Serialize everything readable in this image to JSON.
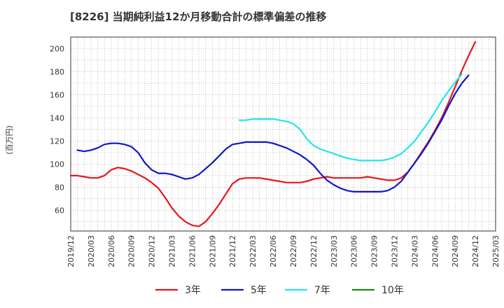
{
  "chart_data": {
    "type": "line",
    "title": "[8226]  当期純利益12か月移動合計の標準偏差の推移",
    "ylabel": "(百万円)",
    "xlabel": "",
    "ylim": [
      42,
      210
    ],
    "y_ticks": [
      60,
      80,
      100,
      120,
      140,
      160,
      180,
      200
    ],
    "x_ticks": [
      "2019/12",
      "2020/03",
      "2020/06",
      "2020/09",
      "2020/12",
      "2021/03",
      "2021/06",
      "2021/09",
      "2021/12",
      "2022/03",
      "2022/06",
      "2022/09",
      "2022/12",
      "2023/03",
      "2023/06",
      "2023/09",
      "2023/12",
      "2024/03",
      "2024/06",
      "2024/09",
      "2024/12",
      "2025/03"
    ],
    "x_start": "2019/12",
    "grid": true,
    "legend_position": "bottom",
    "series": [
      {
        "name": "3年",
        "color": "#e8141c",
        "start": "2019/12",
        "values": [
          90,
          90,
          89,
          88,
          88,
          90,
          95,
          97,
          96,
          94,
          91,
          88,
          84,
          79,
          71,
          62,
          55,
          50,
          47,
          46,
          50,
          57,
          65,
          74,
          83,
          87,
          88,
          88,
          88,
          87,
          86,
          85,
          84,
          84,
          84,
          85,
          87,
          88,
          89,
          88,
          88,
          88,
          88,
          88,
          89,
          88,
          87,
          86,
          86,
          88,
          93,
          101,
          110,
          119,
          129,
          140,
          153,
          167,
          181,
          194,
          206
        ]
      },
      {
        "name": "5年",
        "color": "#1018c8",
        "start": "2020/01",
        "values": [
          112,
          111,
          112,
          114,
          117,
          118,
          118,
          117,
          115,
          110,
          101,
          95,
          92,
          92,
          91,
          89,
          87,
          88,
          91,
          96,
          101,
          107,
          113,
          117,
          118,
          119,
          119,
          119,
          119,
          118,
          116,
          114,
          111,
          108,
          104,
          99,
          92,
          86,
          82,
          79,
          77,
          76,
          76,
          76,
          76,
          76,
          77,
          80,
          85,
          93,
          101,
          109,
          118,
          128,
          138,
          150,
          161,
          170,
          177
        ]
      },
      {
        "name": "7年",
        "color": "#22e6e8",
        "start": "2022/01",
        "values": [
          138,
          138,
          139,
          139,
          139,
          139,
          138,
          137,
          135,
          130,
          122,
          116,
          113,
          111,
          109,
          107,
          105,
          104,
          103,
          103,
          103,
          103,
          104,
          106,
          109,
          114,
          120,
          128,
          136,
          145,
          155,
          163,
          171,
          178
        ]
      },
      {
        "name": "10年",
        "color": "#1a8a1a",
        "start": "2019/12",
        "values": []
      }
    ]
  }
}
